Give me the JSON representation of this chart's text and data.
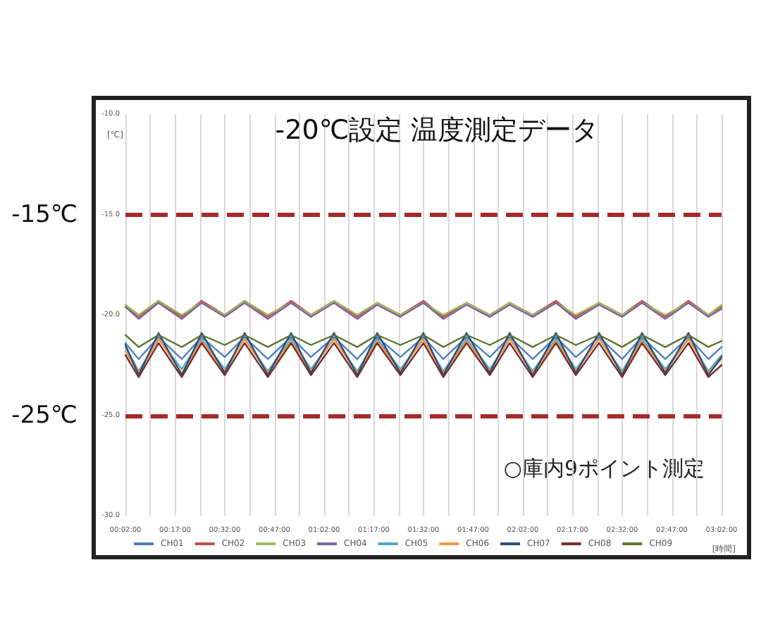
{
  "chart_data": {
    "type": "line",
    "title": "-20℃設定 温度測定データ",
    "xlabel": "[時間]",
    "ylabel": "[℃]",
    "annotations": [
      "○庫内9ポイント測定"
    ],
    "x": [
      0.03333,
      0.1,
      0.2,
      0.317,
      0.417,
      0.533,
      0.633,
      0.75,
      0.867,
      0.967,
      1.083,
      1.2,
      1.3,
      1.417,
      1.533,
      1.633,
      1.75,
      1.867,
      1.967,
      2.083,
      2.2,
      2.3,
      2.417,
      2.533,
      2.633,
      2.75,
      2.867,
      2.967,
      3.03333
    ],
    "series": [
      {
        "name": "CH01",
        "color": "#4f81bd",
        "values": [
          -21.4,
          -22.2,
          -21.1,
          -22.2,
          -21.1,
          -22.1,
          -21.1,
          -22.2,
          -21.1,
          -22.1,
          -21.1,
          -22.2,
          -21.1,
          -22.1,
          -21.1,
          -22.2,
          -21.1,
          -22.1,
          -21.1,
          -22.2,
          -21.1,
          -22.1,
          -21.1,
          -22.2,
          -21.1,
          -22.2,
          -21.1,
          -22.2,
          -21.6
        ]
      },
      {
        "name": "CH02",
        "color": "#c0504d",
        "values": [
          -19.6,
          -20.1,
          -19.3,
          -20.1,
          -19.3,
          -20.0,
          -19.3,
          -20.1,
          -19.3,
          -20.0,
          -19.3,
          -20.1,
          -19.4,
          -20.0,
          -19.3,
          -20.1,
          -19.4,
          -20.0,
          -19.4,
          -20.0,
          -19.3,
          -20.1,
          -19.4,
          -20.0,
          -19.3,
          -20.1,
          -19.3,
          -20.0,
          -19.6
        ]
      },
      {
        "name": "CH03",
        "color": "#9bbb59",
        "values": [
          -19.5,
          -20.0,
          -19.3,
          -20.0,
          -19.4,
          -20.0,
          -19.3,
          -20.0,
          -19.4,
          -20.0,
          -19.3,
          -20.0,
          -19.4,
          -20.0,
          -19.4,
          -20.0,
          -19.4,
          -20.0,
          -19.4,
          -20.0,
          -19.4,
          -20.0,
          -19.4,
          -20.0,
          -19.4,
          -20.0,
          -19.4,
          -20.0,
          -19.5
        ]
      },
      {
        "name": "CH04",
        "color": "#8064a2",
        "values": [
          -19.6,
          -20.2,
          -19.4,
          -20.2,
          -19.4,
          -20.1,
          -19.4,
          -20.2,
          -19.4,
          -20.1,
          -19.4,
          -20.2,
          -19.5,
          -20.1,
          -19.4,
          -20.2,
          -19.5,
          -20.1,
          -19.5,
          -20.1,
          -19.4,
          -20.2,
          -19.5,
          -20.1,
          -19.4,
          -20.2,
          -19.4,
          -20.1,
          -19.7
        ]
      },
      {
        "name": "CH05",
        "color": "#4bacc6",
        "values": [
          -21.6,
          -22.8,
          -21.2,
          -22.7,
          -21.2,
          -22.7,
          -21.2,
          -22.8,
          -21.2,
          -22.7,
          -21.2,
          -22.8,
          -21.2,
          -22.7,
          -21.2,
          -22.8,
          -21.2,
          -22.7,
          -21.2,
          -22.8,
          -21.2,
          -22.7,
          -21.2,
          -22.8,
          -21.2,
          -22.7,
          -21.2,
          -22.8,
          -22.0
        ]
      },
      {
        "name": "CH06",
        "color": "#f79646",
        "values": [
          -21.8,
          -22.9,
          -21.2,
          -22.9,
          -21.3,
          -22.8,
          -21.2,
          -22.9,
          -21.3,
          -22.8,
          -21.2,
          -22.9,
          -21.3,
          -22.8,
          -21.2,
          -22.9,
          -21.3,
          -22.8,
          -21.2,
          -22.9,
          -21.3,
          -22.8,
          -21.2,
          -22.9,
          -21.3,
          -22.8,
          -21.2,
          -22.9,
          -22.2
        ]
      },
      {
        "name": "CH07",
        "color": "#2c4d75",
        "values": [
          -21.5,
          -23.0,
          -20.9,
          -23.0,
          -20.9,
          -22.9,
          -20.9,
          -23.0,
          -20.9,
          -22.9,
          -20.9,
          -23.0,
          -20.9,
          -22.9,
          -20.9,
          -23.0,
          -20.9,
          -22.9,
          -20.9,
          -23.0,
          -20.9,
          -22.9,
          -20.9,
          -23.0,
          -20.9,
          -22.9,
          -20.9,
          -23.0,
          -22.1
        ]
      },
      {
        "name": "CH08",
        "color": "#772c2a",
        "values": [
          -22.0,
          -23.1,
          -21.4,
          -23.1,
          -21.4,
          -23.0,
          -21.4,
          -23.1,
          -21.4,
          -23.0,
          -21.4,
          -23.1,
          -21.4,
          -23.0,
          -21.4,
          -23.1,
          -21.4,
          -23.0,
          -21.4,
          -23.1,
          -21.4,
          -23.0,
          -21.4,
          -23.1,
          -21.4,
          -23.0,
          -21.4,
          -23.1,
          -22.5
        ]
      },
      {
        "name": "CH09",
        "color": "#5f7530",
        "values": [
          -21.0,
          -21.6,
          -21.0,
          -21.6,
          -21.0,
          -21.5,
          -21.0,
          -21.6,
          -21.0,
          -21.5,
          -21.0,
          -21.6,
          -21.0,
          -21.5,
          -21.0,
          -21.6,
          -21.0,
          -21.5,
          -21.0,
          -21.6,
          -21.0,
          -21.5,
          -21.0,
          -21.6,
          -21.0,
          -21.6,
          -21.0,
          -21.6,
          -21.3
        ]
      }
    ],
    "xlim": [
      0.03333,
      3.03333
    ],
    "xticks": [
      {
        "value": 0.03333,
        "label": "00:02:00"
      },
      {
        "value": 0.15833,
        "label": null
      },
      {
        "value": 0.28333,
        "label": "00:17:00"
      },
      {
        "value": 0.40833,
        "label": null
      },
      {
        "value": 0.53333,
        "label": "00:32:00"
      },
      {
        "value": 0.65833,
        "label": null
      },
      {
        "value": 0.78333,
        "label": "00:47:00"
      },
      {
        "value": 0.90833,
        "label": null
      },
      {
        "value": 1.03333,
        "label": "01:02:00"
      },
      {
        "value": 1.15833,
        "label": null
      },
      {
        "value": 1.28333,
        "label": "01:17:00"
      },
      {
        "value": 1.40833,
        "label": null
      },
      {
        "value": 1.53333,
        "label": "01:32:00"
      },
      {
        "value": 1.65833,
        "label": null
      },
      {
        "value": 1.78333,
        "label": "01:47:00"
      },
      {
        "value": 1.90833,
        "label": null
      },
      {
        "value": 2.03333,
        "label": "02:02:00"
      },
      {
        "value": 2.15833,
        "label": null
      },
      {
        "value": 2.28333,
        "label": "02:17:00"
      },
      {
        "value": 2.40833,
        "label": null
      },
      {
        "value": 2.53333,
        "label": "02:32:00"
      },
      {
        "value": 2.65833,
        "label": null
      },
      {
        "value": 2.78333,
        "label": "02:47:00"
      },
      {
        "value": 2.90833,
        "label": null
      },
      {
        "value": 3.03333,
        "label": "03:02:00"
      }
    ],
    "ylim": [
      -30,
      -10
    ],
    "yticks": [
      {
        "value": -30,
        "label": "-30.0"
      },
      {
        "value": -25,
        "label": "-25.0"
      },
      {
        "value": -20,
        "label": "-20.0"
      },
      {
        "value": -15,
        "label": "-15.0"
      },
      {
        "value": -10,
        "label": "-10.0"
      }
    ],
    "ref_lines": [
      {
        "axis": "y",
        "value": -15,
        "label": "-15℃",
        "color": "#a52a2a",
        "line_style": "dashed"
      },
      {
        "axis": "y",
        "value": -25,
        "label": "-25℃",
        "color": "#a52a2a",
        "line_style": "dashed"
      }
    ],
    "grid": "x",
    "legend": "bottom",
    "marker": "none",
    "line_style": "solid"
  }
}
